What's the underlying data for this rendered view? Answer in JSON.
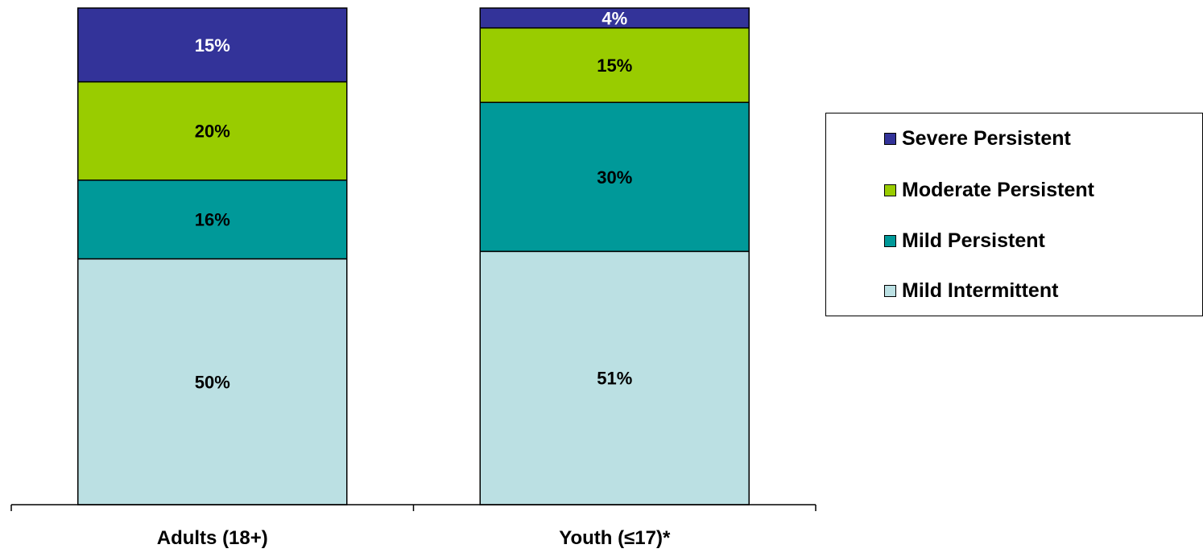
{
  "chart_data": {
    "type": "bar",
    "stacked": true,
    "normalized_percent": true,
    "categories": [
      "Adults (18+)",
      "Youth (≤17)*"
    ],
    "series": [
      {
        "name": "Mild Intermittent",
        "values": [
          50,
          51
        ],
        "labels": [
          "50%",
          "51%"
        ],
        "color": "#bbe0e3"
      },
      {
        "name": "Mild Persistent",
        "values": [
          16,
          30
        ],
        "labels": [
          "16%",
          "30%"
        ],
        "color": "#009999"
      },
      {
        "name": "Moderate Persistent",
        "values": [
          20,
          15
        ],
        "labels": [
          "20%",
          "15%"
        ],
        "color": "#99cc00"
      },
      {
        "name": "Severe Persistent",
        "values": [
          15,
          4
        ],
        "labels": [
          "15%",
          "4%"
        ],
        "color": "#333399"
      }
    ],
    "legend": {
      "position": "right",
      "order": [
        "Severe Persistent",
        "Moderate Persistent",
        "Mild Persistent",
        "Mild Intermittent"
      ]
    },
    "title": "",
    "xlabel": "",
    "ylabel": "",
    "grid": false
  }
}
